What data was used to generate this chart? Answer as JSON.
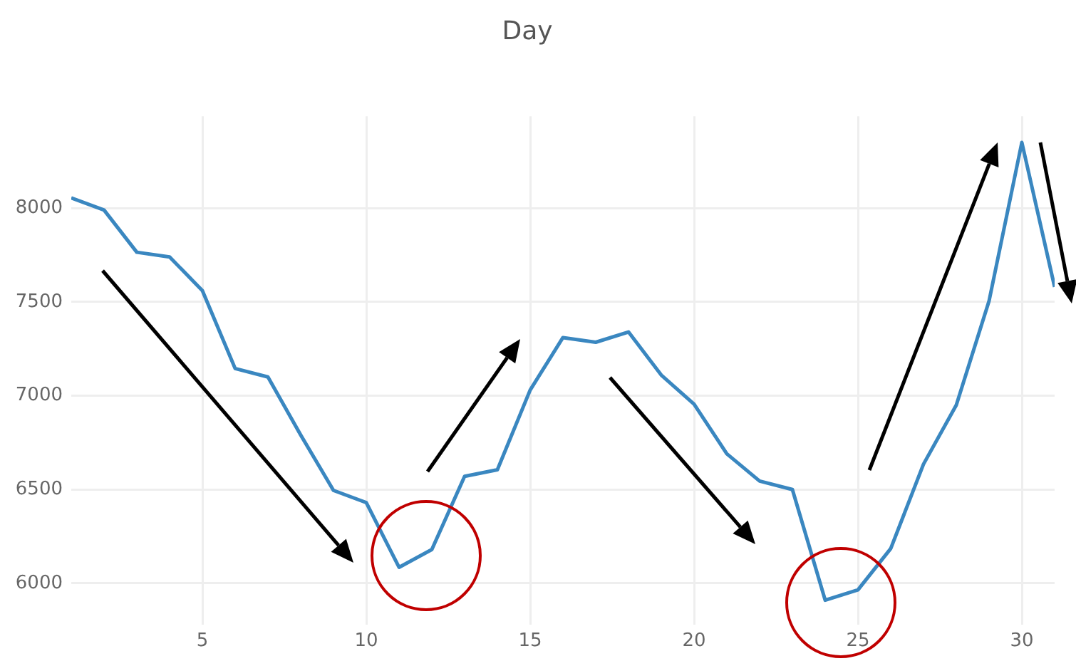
{
  "chart_data": {
    "type": "line",
    "title": "Day",
    "x": [
      1,
      2,
      3,
      4,
      5,
      6,
      7,
      8,
      9,
      10,
      11,
      12,
      13,
      14,
      15,
      16,
      17,
      18,
      19,
      20,
      21,
      22,
      23,
      24,
      25,
      26,
      27,
      28,
      29,
      30,
      31
    ],
    "series": [
      {
        "color": "#3a87c0",
        "values": [
          8055,
          7990,
          7765,
          7740,
          7560,
          7145,
          7100,
          6790,
          6495,
          6430,
          6085,
          6180,
          6570,
          6605,
          7030,
          7310,
          7285,
          7340,
          7110,
          6955,
          6690,
          6545,
          6500,
          5910,
          5965,
          6185,
          6635,
          6950,
          7505,
          8350,
          7580
        ]
      }
    ],
    "xlim": [
      1,
      31
    ],
    "xticks": [
      5,
      10,
      15,
      20,
      25,
      30
    ],
    "ylim": [
      5780,
      8490
    ],
    "yticks": [
      6000,
      6500,
      7000,
      7500,
      8000
    ],
    "grid": true,
    "legend": false,
    "marker": "none",
    "line_style": "solid"
  }
}
